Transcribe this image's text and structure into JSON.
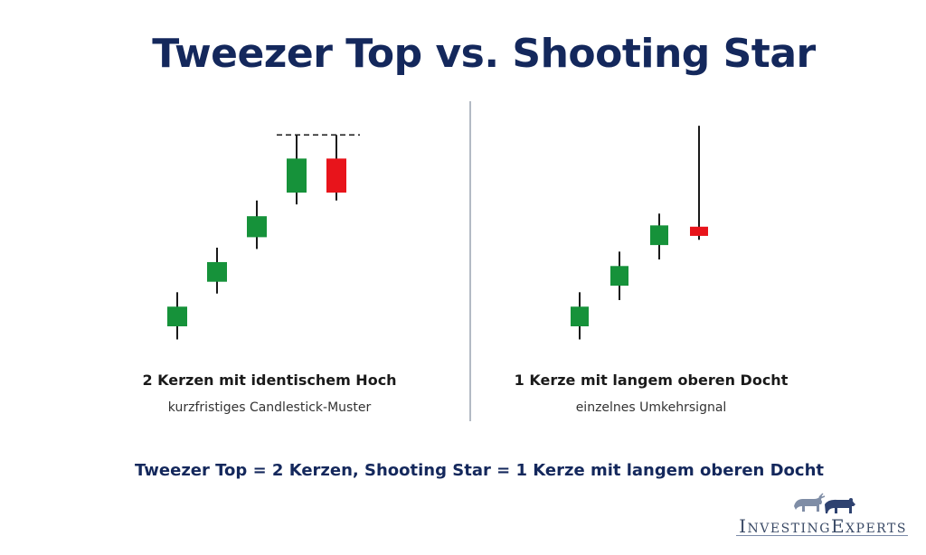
{
  "title": "Tweezer Top vs. Shooting Star",
  "colors": {
    "bullish": "#16923a",
    "bearish": "#e8141b",
    "title": "#14285c",
    "divider": "#9aa3b0"
  },
  "left_panel": {
    "caption": "2 Kerzen mit identischem Hoch",
    "subcaption": "kurzfristiges Candlestick-Muster"
  },
  "right_panel": {
    "caption": "1 Kerze mit langem oberen Docht",
    "subcaption": "einzelnes Umkehrsignal"
  },
  "summary": "Tweezer Top = 2 Kerzen, Shooting Star = 1 Kerze mit langem oberen Docht",
  "logo": {
    "text": "InvestingExperts",
    "icons": [
      "bull-icon",
      "bear-icon"
    ]
  },
  "chart_data": [
    {
      "type": "candlestick",
      "pattern": "tweezer-top",
      "x": [
        1,
        2,
        3,
        4,
        5
      ],
      "candles": [
        {
          "open": 20,
          "close": 35,
          "high": 46,
          "low": 10,
          "direction": "bullish"
        },
        {
          "open": 54,
          "close": 69,
          "high": 80,
          "low": 45,
          "direction": "bullish"
        },
        {
          "open": 88,
          "close": 104,
          "high": 116,
          "low": 79,
          "direction": "bullish"
        },
        {
          "open": 122,
          "close": 148,
          "high": 166,
          "low": 113,
          "direction": "bullish"
        },
        {
          "open": 148,
          "close": 122,
          "high": 166,
          "low": 116,
          "direction": "bearish"
        }
      ],
      "resistance_level": 166,
      "ylim": [
        0,
        180
      ]
    },
    {
      "type": "candlestick",
      "pattern": "shooting-star",
      "x": [
        1,
        2,
        3,
        4
      ],
      "candles": [
        {
          "open": 20,
          "close": 35,
          "high": 46,
          "low": 10,
          "direction": "bullish"
        },
        {
          "open": 51,
          "close": 66,
          "high": 77,
          "low": 40,
          "direction": "bullish"
        },
        {
          "open": 82,
          "close": 97,
          "high": 106,
          "low": 71,
          "direction": "bullish"
        },
        {
          "open": 96,
          "close": 89,
          "high": 173,
          "low": 86,
          "direction": "bearish"
        }
      ],
      "ylim": [
        0,
        180
      ]
    }
  ]
}
